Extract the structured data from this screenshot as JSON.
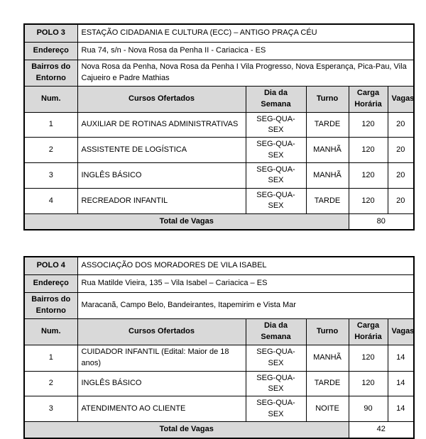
{
  "colors": {
    "header_bg": "#d9d9d9",
    "border": "#000000"
  },
  "tables": [
    {
      "polo_label": "POLO 3",
      "polo_name": "ESTAÇÃO CIDADANIA E CULTURA (ECC) – ANTIGO PRAÇA CÉU",
      "endereco_label": "Endereço",
      "endereco": "Rua 74, s/n - Nova Rosa da Penha II - Cariacica - ES",
      "bairros_label": "Bairros do Entorno",
      "bairros": "Nova Rosa da Penha, Nova Rosa da Penha I Vila Progresso, Nova Esperança, Pica-Pau, Vila Cajueiro e Padre Mathias",
      "columns": [
        "Num.",
        "Cursos Ofertados",
        "Dia da Semana",
        "Turno",
        "Carga Horária",
        "Vagas"
      ],
      "rows": [
        [
          "1",
          "AUXILIAR DE ROTINAS ADMINISTRATIVAS",
          "SEG-QUA-SEX",
          "TARDE",
          "120",
          "20"
        ],
        [
          "2",
          "ASSISTENTE DE LOGÍSTICA",
          "SEG-QUA-SEX",
          "MANHÃ",
          "120",
          "20"
        ],
        [
          "3",
          "INGLÊS BÁSICO",
          "SEG-QUA-SEX",
          "MANHÃ",
          "120",
          "20"
        ],
        [
          "4",
          "RECREADOR INFANTIL",
          "SEG-QUA-SEX",
          "TARDE",
          "120",
          "20"
        ]
      ],
      "total_label": "Total de Vagas",
      "total_value": "80"
    },
    {
      "polo_label": "POLO 4",
      "polo_name": "ASSOCIAÇÃO DOS MORADORES DE VILA ISABEL",
      "endereco_label": "Endereço",
      "endereco": "Rua Matilde Vieira, 135 – Vila Isabel – Cariacica – ES",
      "bairros_label": "Bairros do Entorno",
      "bairros": "Maracanã, Campo Belo, Bandeirantes, Itapemirim e Vista Mar",
      "columns": [
        "Num.",
        "Cursos Ofertados",
        "Dia da Semana",
        "Turno",
        "Carga Horária",
        "Vagas"
      ],
      "rows": [
        [
          "1",
          "CUIDADOR INFANTIL (Edital: Maior de 18 anos)",
          "SEG-QUA-SEX",
          "MANHÃ",
          "120",
          "14"
        ],
        [
          "2",
          "INGLÊS BÁSICO",
          "SEG-QUA-SEX",
          "TARDE",
          "120",
          "14"
        ],
        [
          "3",
          "ATENDIMENTO AO CLIENTE",
          "SEG-QUA-SEX",
          "NOITE",
          "90",
          "14"
        ]
      ],
      "total_label": "Total de Vagas",
      "total_value": "42"
    }
  ]
}
